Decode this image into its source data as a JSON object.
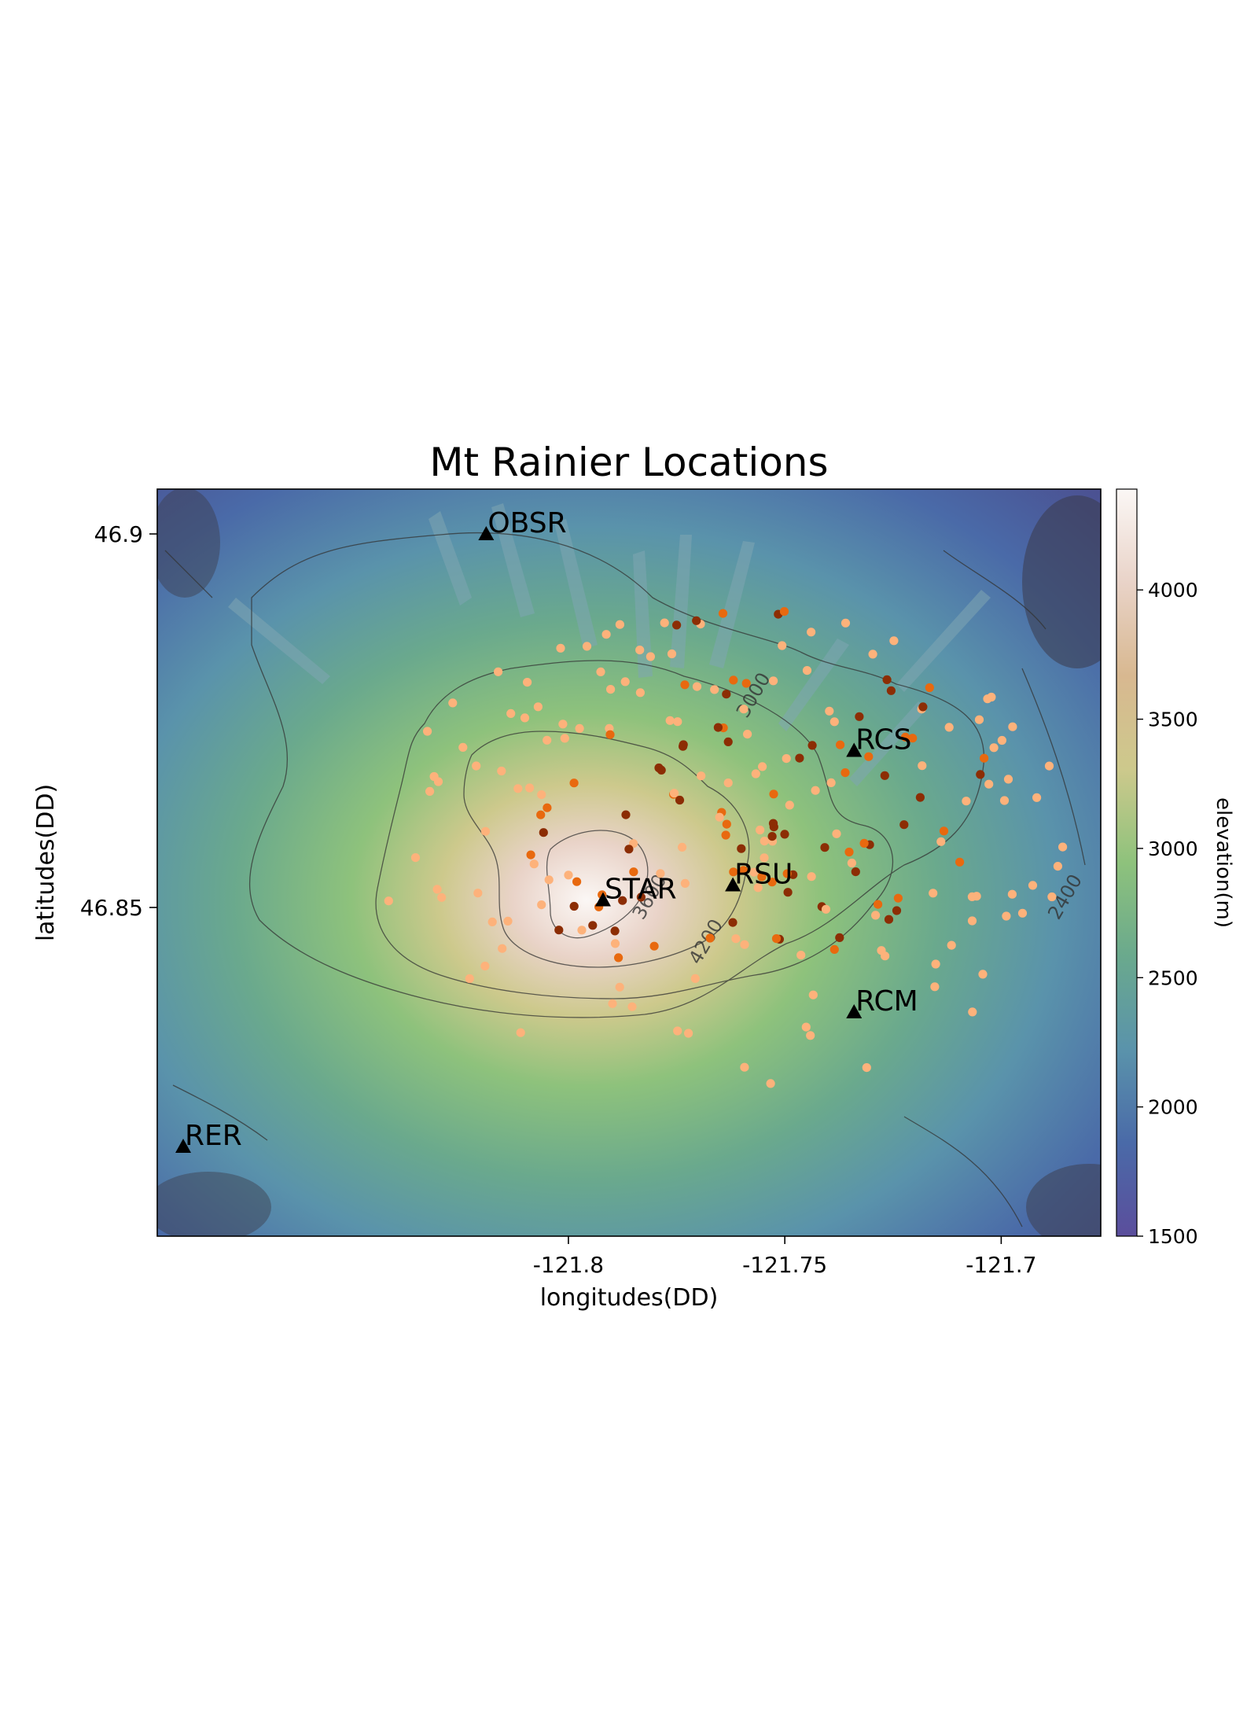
{
  "title": "Mt Rainier Locations",
  "xlabel": "longitudes(DD)",
  "ylabel": "latitudes(DD)",
  "colorbar_label": "elevation(m)",
  "map": {
    "xlim": [
      -121.895,
      -121.677
    ],
    "ylim": [
      46.806,
      46.906
    ],
    "x_ticks": [
      {
        "value": -121.8,
        "label": "-121.8"
      },
      {
        "value": -121.75,
        "label": "-121.75"
      },
      {
        "value": -121.7,
        "label": "-121.7"
      }
    ],
    "y_ticks": [
      {
        "value": 46.9,
        "label": "46.9"
      },
      {
        "value": 46.85,
        "label": "46.85"
      }
    ],
    "colorbar": {
      "range": [
        1500,
        4390
      ],
      "ticks": [
        {
          "value": 1500,
          "label": "1500"
        },
        {
          "value": 2000,
          "label": "2000"
        },
        {
          "value": 2500,
          "label": "2500"
        },
        {
          "value": 3000,
          "label": "3000"
        },
        {
          "value": 3500,
          "label": "3500"
        },
        {
          "value": 4000,
          "label": "4000"
        }
      ],
      "colors": [
        "#5b4e9c",
        "#4a6aa8",
        "#5a93ab",
        "#6aa98d",
        "#8ec27c",
        "#cdc98c",
        "#d8b890",
        "#e9d3c8",
        "#fbf7f5"
      ]
    },
    "contour_labels": [
      {
        "text": "3000",
        "lon": -121.756,
        "lat": 46.878
      },
      {
        "text": "3600",
        "lon": -121.78,
        "lat": 46.851
      },
      {
        "text": "4200",
        "lon": -121.767,
        "lat": 46.845
      },
      {
        "text": "2400",
        "lon": -121.684,
        "lat": 46.851
      }
    ],
    "stations": [
      {
        "name": "OBSR",
        "lon": -121.819,
        "lat": 46.9
      },
      {
        "name": "RCS",
        "lon": -121.734,
        "lat": 46.871
      },
      {
        "name": "RSU",
        "lon": -121.762,
        "lat": 46.853
      },
      {
        "name": "STAR",
        "lon": -121.792,
        "lat": 46.851
      },
      {
        "name": "RCM",
        "lon": -121.734,
        "lat": 46.836
      },
      {
        "name": "RER",
        "lon": -121.889,
        "lat": 46.818
      }
    ],
    "event_colors": {
      "shallow": "#fdb27b",
      "mid": "#e8690f",
      "deep": "#8c2d04"
    }
  }
}
